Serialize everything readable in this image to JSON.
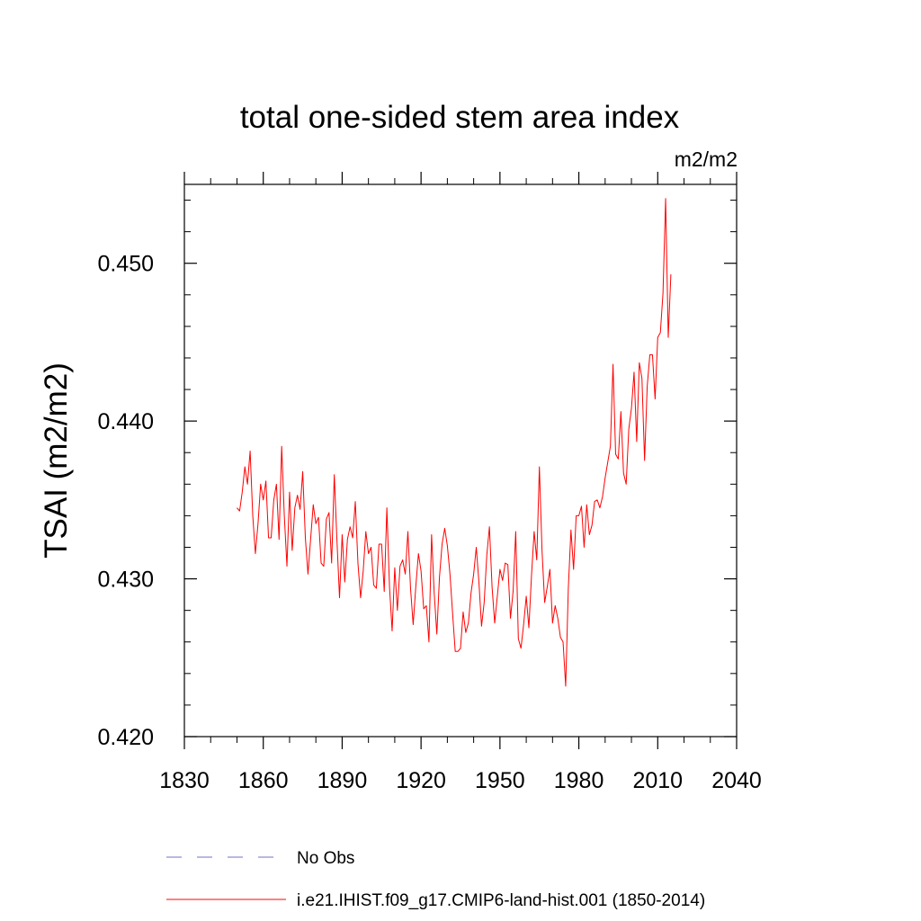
{
  "chart_data": {
    "type": "line",
    "title": "total one-sided stem area index",
    "units_label": "m2/m2",
    "ylabel": "TSAI  (m2/m2)",
    "xlabel": "",
    "xlim": [
      1830,
      2040
    ],
    "ylim": [
      0.42,
      0.455
    ],
    "x_ticks": [
      1830,
      1860,
      1890,
      1920,
      1950,
      1980,
      2010,
      2040
    ],
    "x_tick_labels": [
      "1830",
      "1860",
      "1890",
      "1920",
      "1950",
      "1980",
      "2010",
      "2040"
    ],
    "y_ticks": [
      0.42,
      0.43,
      0.44,
      0.45
    ],
    "y_tick_labels": [
      "0.420",
      "0.430",
      "0.440",
      "0.450"
    ],
    "grid": false,
    "legend_position": "bottom",
    "legend": [
      {
        "label": "No Obs",
        "color": "#7070c8",
        "style": "dashed"
      },
      {
        "label": "i.e21.IHIST.f09_g17.CMIP6-land-hist.001 (1850-2014)",
        "color": "#ff0000",
        "style": "solid"
      }
    ],
    "series": [
      {
        "name": "i.e21.IHIST.f09_g17.CMIP6-land-hist.001 (1850-2014)",
        "color": "#ff0000",
        "x_start": 1850,
        "x_step": 1,
        "values": [
          0.4345,
          0.4343,
          0.4355,
          0.4371,
          0.436,
          0.4381,
          0.434,
          0.4316,
          0.4335,
          0.436,
          0.435,
          0.4362,
          0.4326,
          0.4326,
          0.435,
          0.436,
          0.4325,
          0.4384,
          0.434,
          0.4308,
          0.4355,
          0.4318,
          0.4345,
          0.4353,
          0.4344,
          0.4368,
          0.4326,
          0.4303,
          0.4325,
          0.4347,
          0.4335,
          0.4339,
          0.431,
          0.4308,
          0.4338,
          0.4342,
          0.431,
          0.4366,
          0.4325,
          0.4288,
          0.4328,
          0.4298,
          0.4325,
          0.4333,
          0.4326,
          0.4349,
          0.431,
          0.4288,
          0.4305,
          0.433,
          0.4316,
          0.432,
          0.4296,
          0.4294,
          0.4322,
          0.4322,
          0.4292,
          0.4345,
          0.4295,
          0.4267,
          0.4307,
          0.428,
          0.4308,
          0.4312,
          0.4303,
          0.433,
          0.4294,
          0.4271,
          0.4295,
          0.4316,
          0.4305,
          0.4281,
          0.4283,
          0.426,
          0.4328,
          0.4291,
          0.4265,
          0.4301,
          0.4322,
          0.4332,
          0.4321,
          0.4303,
          0.4278,
          0.4254,
          0.4254,
          0.4256,
          0.4279,
          0.4266,
          0.4272,
          0.4291,
          0.4303,
          0.432,
          0.4298,
          0.427,
          0.4285,
          0.4315,
          0.4333,
          0.4295,
          0.4272,
          0.4289,
          0.4306,
          0.4299,
          0.431,
          0.4309,
          0.4275,
          0.4292,
          0.433,
          0.4262,
          0.4256,
          0.4271,
          0.4289,
          0.4269,
          0.4302,
          0.433,
          0.4312,
          0.4371,
          0.4318,
          0.4285,
          0.4295,
          0.4306,
          0.4272,
          0.4283,
          0.4275,
          0.4263,
          0.426,
          0.4232,
          0.4294,
          0.4331,
          0.4306,
          0.434,
          0.434,
          0.4346,
          0.432,
          0.4347,
          0.4328,
          0.4334,
          0.4349,
          0.435,
          0.4345,
          0.4352,
          0.4364,
          0.4374,
          0.4384,
          0.4436,
          0.4379,
          0.4376,
          0.4406,
          0.4367,
          0.436,
          0.4395,
          0.4408,
          0.4431,
          0.4387,
          0.4437,
          0.4427,
          0.4375,
          0.4422,
          0.4442,
          0.4442,
          0.4414,
          0.4453,
          0.4456,
          0.4481,
          0.4541,
          0.4453,
          0.4493
        ]
      }
    ]
  }
}
